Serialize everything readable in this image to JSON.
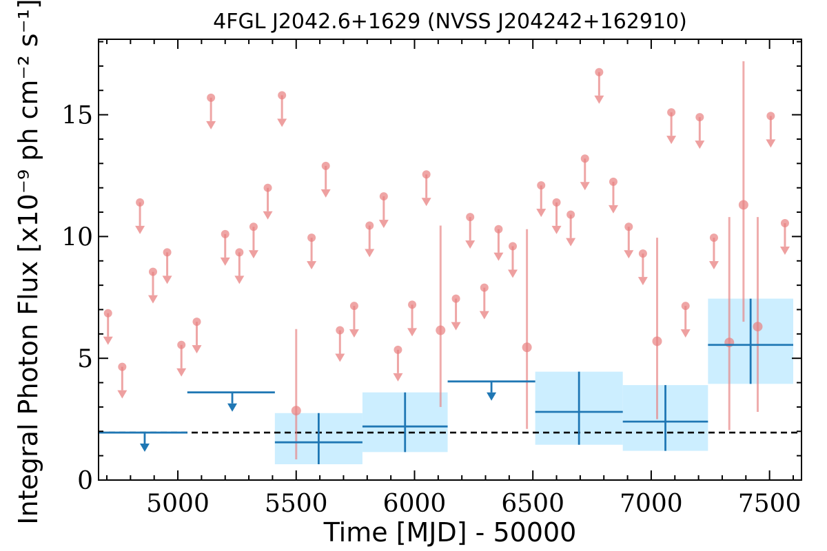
{
  "chart_data": {
    "type": "scatter",
    "title": "4FGL J2042.6+1629 (NVSS J204242+162910)",
    "xlabel": "Time [MJD] - 50000",
    "ylabel": "Integral Photon Flux [x10⁻⁹ ph cm⁻² s⁻¹]",
    "xlim": [
      4665,
      7635
    ],
    "ylim": [
      0,
      18.1
    ],
    "x_ticks": [
      5000,
      5500,
      6000,
      6500,
      7000,
      7500
    ],
    "y_ticks": [
      0,
      5,
      10,
      15
    ],
    "reference_line": {
      "y": 1.95,
      "style": "dashed",
      "color": "#000000"
    },
    "colors": {
      "fine_points": "#e88080",
      "coarse_bins": "#1f77b4",
      "coarse_band": "#cceeff"
    },
    "series": [
      {
        "binning": "fine",
        "upper_limits": [
          {
            "x": 4705,
            "y": 6.85
          },
          {
            "x": 4765,
            "y": 4.65
          },
          {
            "x": 4840,
            "y": 11.4
          },
          {
            "x": 4895,
            "y": 8.55
          },
          {
            "x": 4955,
            "y": 9.35
          },
          {
            "x": 5015,
            "y": 5.55
          },
          {
            "x": 5080,
            "y": 6.5
          },
          {
            "x": 5140,
            "y": 15.7
          },
          {
            "x": 5200,
            "y": 10.1
          },
          {
            "x": 5260,
            "y": 9.35
          },
          {
            "x": 5320,
            "y": 10.4
          },
          {
            "x": 5380,
            "y": 12.0
          },
          {
            "x": 5440,
            "y": 15.8
          },
          {
            "x": 5565,
            "y": 9.95
          },
          {
            "x": 5625,
            "y": 12.9
          },
          {
            "x": 5685,
            "y": 6.15
          },
          {
            "x": 5745,
            "y": 7.15
          },
          {
            "x": 5810,
            "y": 10.45
          },
          {
            "x": 5870,
            "y": 11.65
          },
          {
            "x": 5930,
            "y": 5.35
          },
          {
            "x": 5990,
            "y": 7.2
          },
          {
            "x": 6050,
            "y": 12.55
          },
          {
            "x": 6175,
            "y": 7.45
          },
          {
            "x": 6235,
            "y": 10.8
          },
          {
            "x": 6295,
            "y": 7.9
          },
          {
            "x": 6355,
            "y": 10.3
          },
          {
            "x": 6415,
            "y": 9.6
          },
          {
            "x": 6535,
            "y": 12.1
          },
          {
            "x": 6600,
            "y": 11.4
          },
          {
            "x": 6660,
            "y": 10.9
          },
          {
            "x": 6720,
            "y": 13.2
          },
          {
            "x": 6780,
            "y": 16.75
          },
          {
            "x": 6840,
            "y": 12.25
          },
          {
            "x": 6905,
            "y": 10.4
          },
          {
            "x": 6965,
            "y": 9.3
          },
          {
            "x": 7085,
            "y": 15.1
          },
          {
            "x": 7145,
            "y": 7.15
          },
          {
            "x": 7205,
            "y": 14.9
          },
          {
            "x": 7265,
            "y": 9.95
          },
          {
            "x": 7505,
            "y": 14.95
          },
          {
            "x": 7565,
            "y": 10.55
          }
        ],
        "detections": [
          {
            "x": 5500,
            "y": 2.85,
            "ylo": 0.85,
            "yhi": 6.2
          },
          {
            "x": 6110,
            "y": 6.15,
            "ylo": 3.0,
            "yhi": 10.45
          },
          {
            "x": 6475,
            "y": 5.45,
            "ylo": 2.1,
            "yhi": 10.3
          },
          {
            "x": 7025,
            "y": 5.7,
            "ylo": 2.5,
            "yhi": 9.95
          },
          {
            "x": 7330,
            "y": 5.65,
            "ylo": 2.05,
            "yhi": 10.8
          },
          {
            "x": 7390,
            "y": 11.3,
            "ylo": 6.5,
            "yhi": 17.2
          },
          {
            "x": 7450,
            "y": 6.3,
            "ylo": 2.8,
            "yhi": 10.8
          }
        ]
      },
      {
        "binning": "coarse",
        "upper_limits": [
          {
            "xlo": 4665,
            "xhi": 5040,
            "x": 4860,
            "y": 1.95
          },
          {
            "xlo": 5040,
            "xhi": 5410,
            "x": 5230,
            "y": 3.6
          },
          {
            "xlo": 6140,
            "xhi": 6510,
            "x": 6325,
            "y": 4.05
          }
        ],
        "detections": [
          {
            "xlo": 5410,
            "xhi": 5780,
            "x": 5595,
            "y": 1.55,
            "ylo": 0.65,
            "yhi": 2.75
          },
          {
            "xlo": 5780,
            "xhi": 6140,
            "x": 5960,
            "y": 2.2,
            "ylo": 1.15,
            "yhi": 3.6
          },
          {
            "xlo": 6510,
            "xhi": 6880,
            "x": 6695,
            "y": 2.8,
            "ylo": 1.45,
            "yhi": 4.45
          },
          {
            "xlo": 6880,
            "xhi": 7240,
            "x": 7060,
            "y": 2.4,
            "ylo": 1.2,
            "yhi": 3.9
          },
          {
            "xlo": 7240,
            "xhi": 7600,
            "x": 7420,
            "y": 5.55,
            "ylo": 3.95,
            "yhi": 7.45
          }
        ]
      }
    ]
  }
}
